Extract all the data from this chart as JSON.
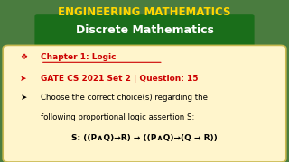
{
  "title_top": "ENGINEERING MATHEMATICS",
  "title_sub": "Discrete Mathematics",
  "title_top_color": "#FFD700",
  "title_sub_color": "#FFFFFF",
  "title_sub_bg": "#1a6e1a",
  "bg_color": "#4a7c3f",
  "card_bg": "#FFF5CC",
  "card_border": "#C8B850",
  "line1_bullet": "❖",
  "line1_text": "Chapter 1: Logic",
  "line1_color": "#CC0000",
  "line2_bullet": "➤",
  "line2_text": "GATE CS 2021 Set 2 | Question: 15",
  "line2_color": "#CC0000",
  "line3_bullet": "➤",
  "line3_text": "Choose the correct choice(s) regarding the",
  "line3_color": "#000000",
  "line4_text": "following proportional logic assertion S:",
  "line4_color": "#000000",
  "line5_text": "S: ((P∧Q)→R) → ((P∧Q)→(Q → R))",
  "line5_color": "#000000",
  "fig_width": 3.2,
  "fig_height": 1.8,
  "dpi": 100
}
